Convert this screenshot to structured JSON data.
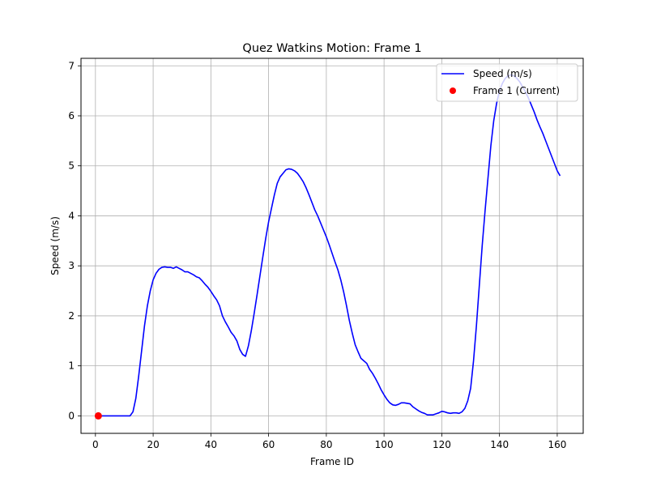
{
  "chart_data": {
    "type": "line",
    "title": "Quez Watkins Motion: Frame 1",
    "xlabel": "Frame ID",
    "ylabel": "Speed (m/s)",
    "xlim": [
      -5,
      169
    ],
    "ylim": [
      -0.35,
      7.15
    ],
    "xticks": [
      0,
      20,
      40,
      60,
      80,
      100,
      120,
      140,
      160
    ],
    "yticks": [
      0,
      1,
      2,
      3,
      4,
      5,
      6,
      7
    ],
    "grid": true,
    "legend_position": "top-right",
    "series": [
      {
        "name": "Speed (m/s)",
        "color": "#0000ff",
        "x": [
          1,
          2,
          3,
          4,
          5,
          6,
          7,
          8,
          9,
          10,
          11,
          12,
          13,
          14,
          15,
          16,
          17,
          18,
          19,
          20,
          21,
          22,
          23,
          24,
          25,
          26,
          27,
          28,
          29,
          30,
          31,
          32,
          33,
          34,
          35,
          36,
          37,
          38,
          39,
          40,
          41,
          42,
          43,
          44,
          45,
          46,
          47,
          48,
          49,
          50,
          51,
          52,
          53,
          54,
          55,
          56,
          57,
          58,
          59,
          60,
          61,
          62,
          63,
          64,
          65,
          66,
          67,
          68,
          69,
          70,
          71,
          72,
          73,
          74,
          75,
          76,
          77,
          78,
          79,
          80,
          81,
          82,
          83,
          84,
          85,
          86,
          87,
          88,
          89,
          90,
          91,
          92,
          93,
          94,
          95,
          96,
          97,
          98,
          99,
          100,
          101,
          102,
          103,
          104,
          105,
          106,
          107,
          108,
          109,
          110,
          111,
          112,
          113,
          114,
          115,
          116,
          117,
          118,
          119,
          120,
          121,
          122,
          123,
          124,
          125,
          126,
          127,
          128,
          129,
          130,
          131,
          132,
          133,
          134,
          135,
          136,
          137,
          138,
          139,
          140,
          141,
          142,
          143,
          144,
          145,
          146,
          147,
          148,
          149,
          150,
          151,
          152,
          153,
          154,
          155,
          156,
          157,
          158,
          159,
          160,
          161
        ],
        "y": [
          0,
          0,
          0,
          0,
          0,
          0,
          0,
          0,
          0,
          0,
          0,
          0,
          0.08,
          0.35,
          0.8,
          1.3,
          1.8,
          2.2,
          2.5,
          2.72,
          2.85,
          2.93,
          2.97,
          2.98,
          2.97,
          2.97,
          2.95,
          2.98,
          2.95,
          2.92,
          2.88,
          2.88,
          2.85,
          2.82,
          2.78,
          2.76,
          2.7,
          2.63,
          2.57,
          2.49,
          2.4,
          2.32,
          2.2,
          2.0,
          1.88,
          1.78,
          1.67,
          1.6,
          1.5,
          1.33,
          1.23,
          1.19,
          1.4,
          1.7,
          2.05,
          2.42,
          2.8,
          3.18,
          3.55,
          3.88,
          4.15,
          4.42,
          4.65,
          4.78,
          4.85,
          4.92,
          4.94,
          4.93,
          4.9,
          4.85,
          4.77,
          4.68,
          4.56,
          4.42,
          4.27,
          4.12,
          4.0,
          3.86,
          3.72,
          3.58,
          3.42,
          3.25,
          3.08,
          2.92,
          2.72,
          2.48,
          2.2,
          1.9,
          1.65,
          1.42,
          1.28,
          1.15,
          1.1,
          1.05,
          0.93,
          0.85,
          0.75,
          0.64,
          0.52,
          0.42,
          0.33,
          0.26,
          0.22,
          0.21,
          0.23,
          0.26,
          0.26,
          0.25,
          0.24,
          0.18,
          0.14,
          0.1,
          0.07,
          0.05,
          0.02,
          0.02,
          0.02,
          0.04,
          0.06,
          0.09,
          0.08,
          0.06,
          0.05,
          0.06,
          0.06,
          0.05,
          0.08,
          0.15,
          0.3,
          0.55,
          1.1,
          1.8,
          2.6,
          3.4,
          4.1,
          4.75,
          5.4,
          5.9,
          6.25,
          6.5,
          6.65,
          6.75,
          6.8,
          6.82,
          6.8,
          6.75,
          6.68,
          6.58,
          6.48,
          6.36,
          6.22,
          6.08,
          5.92,
          5.78,
          5.65,
          5.5,
          5.35,
          5.2,
          5.05,
          4.9,
          4.8
        ],
        "note_ignore": ""
      }
    ],
    "points": [
      {
        "name": "Frame 1 (Current)",
        "color": "#ff0000",
        "x": 1,
        "y": 0
      }
    ]
  }
}
